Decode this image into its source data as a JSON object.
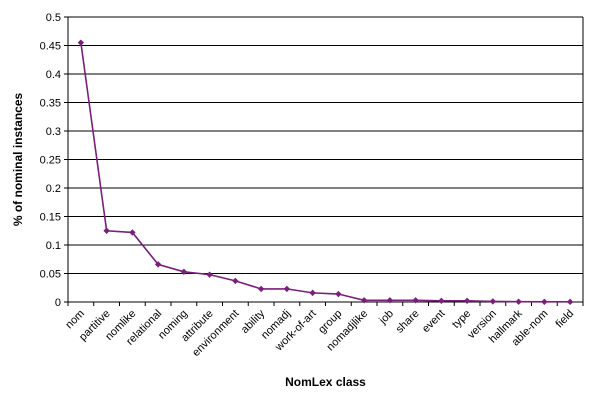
{
  "chart_data": {
    "type": "line",
    "title": "",
    "xlabel": "NomLex class",
    "ylabel": "% of nominal instances",
    "ylim": [
      0,
      0.5
    ],
    "yticks": [
      0,
      0.05,
      0.1,
      0.15,
      0.2,
      0.25,
      0.3,
      0.35,
      0.4,
      0.45,
      0.5
    ],
    "ytick_labels": [
      "0",
      "0.05",
      "0.1",
      "0.15",
      "0.2",
      "0.25",
      "0.3",
      "0.35",
      "0.4",
      "0.45",
      "0.5"
    ],
    "grid": "horizontal",
    "legend": "none",
    "categories": [
      "nom",
      "partitive",
      "nomlike",
      "relational",
      "noming",
      "attribute",
      "environment",
      "ability",
      "nomadj",
      "work-of-art",
      "group",
      "nomadjlike",
      "job",
      "share",
      "event",
      "type",
      "version",
      "hallmark",
      "able-nom",
      "field"
    ],
    "series": [
      {
        "values": [
          0.455,
          0.125,
          0.122,
          0.066,
          0.053,
          0.048,
          0.037,
          0.023,
          0.023,
          0.016,
          0.014,
          0.003,
          0.003,
          0.003,
          0.002,
          0.002,
          0.001,
          0.0005,
          0.0004,
          0.0003
        ],
        "color": "#7B1F7B"
      }
    ],
    "colors": {
      "line": "#7B1F7B",
      "grid": "#000000",
      "frame": "#000000"
    }
  }
}
